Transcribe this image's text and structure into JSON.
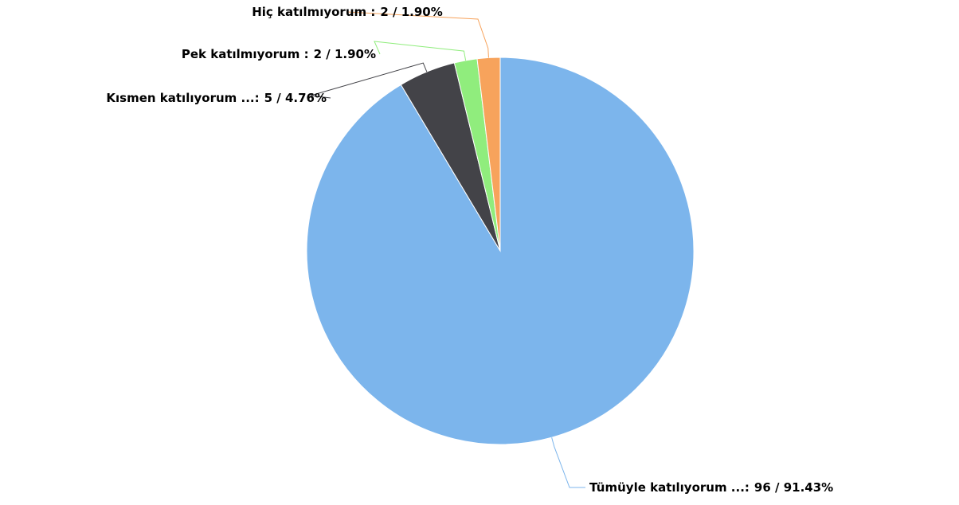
{
  "chart_data": {
    "type": "pie",
    "categories": [
      "Tümüyle katılıyorum ...:",
      "Kısmen katılıyorum ...:",
      "Pek katılmıyorum :",
      "Hiç katılmıyorum :"
    ],
    "values": [
      96,
      5,
      2,
      2
    ],
    "value_labels": [
      "96 / 91.43%",
      "5 / 4.76%",
      "2 / 1.90%",
      "2 / 1.90%"
    ],
    "colors": [
      "#7cb5ec",
      "#434348",
      "#90ed7d",
      "#f7a35c"
    ]
  }
}
